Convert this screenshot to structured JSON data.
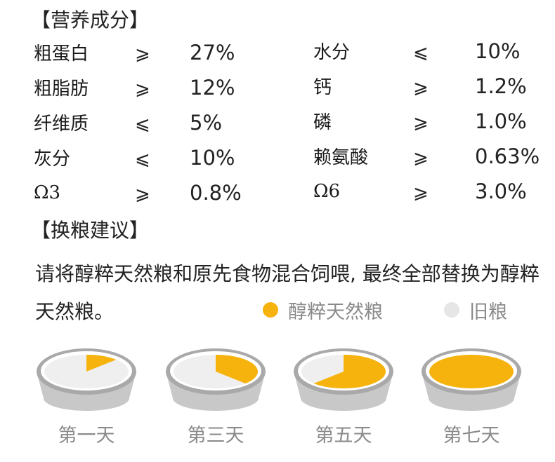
{
  "nutrition": {
    "title": "【营养成分】",
    "left": [
      {
        "name": "粗蛋白",
        "sym": "⩾",
        "value": "27%"
      },
      {
        "name": "粗脂肪",
        "sym": "⩾",
        "value": "12%"
      },
      {
        "name": "纤维质",
        "sym": "⩽",
        "value": "5%"
      },
      {
        "name": "灰分",
        "sym": "⩽",
        "value": "10%"
      },
      {
        "name": "Ω3",
        "sym": "⩾",
        "value": "0.8%"
      }
    ],
    "right": [
      {
        "name": "水分",
        "sym": "⩽",
        "value": "10%"
      },
      {
        "name": "钙",
        "sym": "⩾",
        "value": "1.2%"
      },
      {
        "name": "磷",
        "sym": "⩾",
        "value": "1.0%"
      },
      {
        "name": "赖氨酸",
        "sym": "⩾",
        "value": "0.63%"
      },
      {
        "name": "Ω6",
        "sym": "⩾",
        "value": "3.0%"
      }
    ]
  },
  "switching": {
    "title": "【换粮建议】",
    "advice": "请将醇粹天然粮和原先食物混合饲喂, 最终全部替换为醇粹天然粮。",
    "legend": [
      {
        "label": "醇粹天然粮",
        "color": "#f6b30e"
      },
      {
        "label": "旧粮",
        "color": "#e6e6e6"
      }
    ],
    "days": [
      {
        "label": "第一天",
        "new_fraction": 0.125
      },
      {
        "label": "第三天",
        "new_fraction": 0.375
      },
      {
        "label": "第五天",
        "new_fraction": 0.625
      },
      {
        "label": "第七天",
        "new_fraction": 1.0
      }
    ]
  },
  "colors": {
    "new_food": "#f6b30e",
    "old_food": "#efefef",
    "bowl_body": "#c8c8c8",
    "bowl_rim": "#a9a9a9",
    "bowl_inner_rim": "#ffffff"
  }
}
